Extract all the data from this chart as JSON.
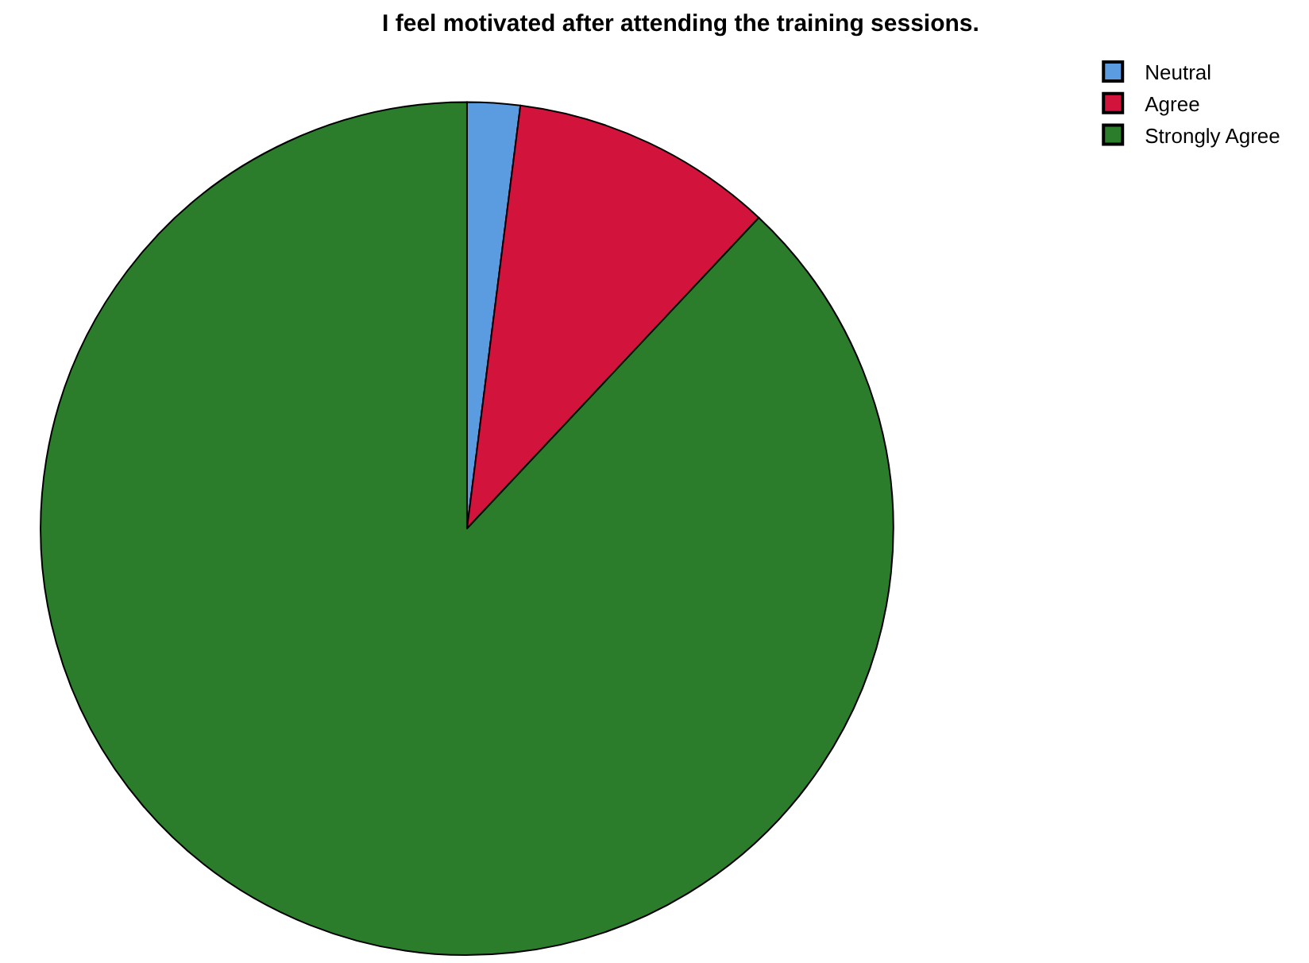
{
  "chart_data": {
    "type": "pie",
    "title": "I feel motivated after attending the training sessions.",
    "categories": [
      "Neutral",
      "Agree",
      "Strongly Agree"
    ],
    "values": [
      2,
      10,
      88
    ],
    "colors": [
      "#5b9bdf",
      "#d2143c",
      "#2b7d2b"
    ],
    "legend": "top right"
  }
}
